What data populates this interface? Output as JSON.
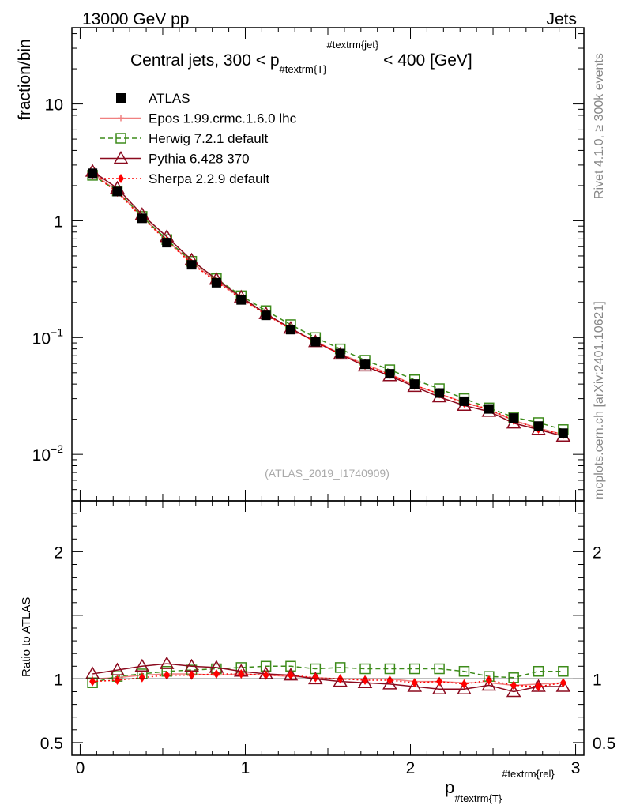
{
  "header": {
    "left": "13000 GeV pp",
    "right": "Jets"
  },
  "side_labels": {
    "upper": "Rivet 4.1.0, ≥ 300k events",
    "lower": "mcplots.cern.ch [arXiv:2401.10621]"
  },
  "chart_data": {
    "type": "line",
    "title": "Central jets, 300 < p",
    "title_sub": "#textrm{T}",
    "title_sup": "#textrm{jet}",
    "title_rest": " < 400 [GeV]",
    "watermark": "(ATLAS_2019_I1740909)",
    "ylabel": "fraction/bin",
    "ratio_ylabel": "Ratio to ATLAS",
    "xlabel": "p",
    "xlabel_sub": "#textrm{T}",
    "xlabel_sup": "#textrm{rel}",
    "x_ticks": [
      "0",
      "1",
      "2",
      "3"
    ],
    "y_ticks_main": [
      {
        "base": "10",
        "exp": "−2"
      },
      {
        "base": "10",
        "exp": "−1"
      },
      {
        "base": "1",
        "exp": ""
      },
      {
        "base": "10",
        "exp": ""
      }
    ],
    "y_ticks_ratio": [
      "0.5",
      "1",
      "2"
    ],
    "xlim": [
      -0.05,
      3.05
    ],
    "ylim_main": [
      0.004,
      45
    ],
    "ylim_ratio": [
      0.4,
      2.4
    ],
    "x": [
      0.075,
      0.225,
      0.375,
      0.525,
      0.675,
      0.825,
      0.975,
      1.125,
      1.275,
      1.425,
      1.575,
      1.725,
      1.875,
      2.025,
      2.175,
      2.325,
      2.475,
      2.625,
      2.775,
      2.925
    ],
    "series": [
      {
        "name": "ATLAS",
        "color": "#000000",
        "marker": "square-filled",
        "line": "none",
        "values": [
          2.55,
          1.78,
          1.05,
          0.65,
          0.42,
          0.295,
          0.21,
          0.155,
          0.117,
          0.092,
          0.073,
          0.059,
          0.049,
          0.04,
          0.0335,
          0.0285,
          0.0245,
          0.0205,
          0.0175,
          0.0152
        ]
      },
      {
        "name": "Epos 1.99.crmc.1.6.0 lhc",
        "color": "#f08080",
        "marker": "cross",
        "line": "solid",
        "values": [
          2.55,
          1.8,
          1.08,
          0.68,
          0.44,
          0.305,
          0.218,
          0.159,
          0.119,
          0.093,
          0.073,
          0.059,
          0.049,
          0.039,
          0.033,
          0.028,
          0.024,
          0.0195,
          0.0168,
          0.0148
        ]
      },
      {
        "name": "Herwig 7.2.1 default",
        "color": "#3d8b1a",
        "marker": "square-open",
        "line": "dashed",
        "values": [
          2.45,
          1.8,
          1.09,
          0.69,
          0.45,
          0.32,
          0.228,
          0.17,
          0.129,
          0.1,
          0.08,
          0.064,
          0.053,
          0.0435,
          0.0365,
          0.03,
          0.025,
          0.0208,
          0.0187,
          0.0163
        ]
      },
      {
        "name": "Pythia 6.428 370",
        "color": "#8b0a1e",
        "marker": "triangle-open",
        "line": "solid",
        "values": [
          2.65,
          1.9,
          1.13,
          0.73,
          0.46,
          0.315,
          0.222,
          0.16,
          0.12,
          0.092,
          0.072,
          0.057,
          0.047,
          0.038,
          0.031,
          0.0262,
          0.0233,
          0.0185,
          0.0163,
          0.0143
        ]
      },
      {
        "name": "Sherpa 2.2.9 default",
        "color": "#ff0000",
        "marker": "diamond-filled",
        "line": "dotted",
        "values": [
          2.5,
          1.76,
          1.06,
          0.67,
          0.43,
          0.3,
          0.215,
          0.157,
          0.118,
          0.092,
          0.072,
          0.058,
          0.048,
          0.039,
          0.033,
          0.0276,
          0.0245,
          0.0196,
          0.0165,
          0.0148
        ]
      }
    ],
    "ratio_series": [
      {
        "name": "Epos 1.99.crmc.1.6.0 lhc",
        "values": [
          1.0,
          1.01,
          1.03,
          1.04,
          1.04,
          1.03,
          1.04,
          1.03,
          1.02,
          1.01,
          1.0,
          1.0,
          1.0,
          0.98,
          0.98,
          0.97,
          0.97,
          0.95,
          0.96,
          0.97
        ]
      },
      {
        "name": "Herwig 7.2.1 default",
        "values": [
          0.97,
          1.02,
          1.04,
          1.06,
          1.07,
          1.08,
          1.09,
          1.1,
          1.1,
          1.08,
          1.09,
          1.08,
          1.08,
          1.08,
          1.08,
          1.06,
          1.02,
          1.01,
          1.06,
          1.06
        ]
      },
      {
        "name": "Pythia 6.428 370",
        "values": [
          1.04,
          1.07,
          1.1,
          1.12,
          1.1,
          1.09,
          1.06,
          1.04,
          1.03,
          1.0,
          0.98,
          0.97,
          0.96,
          0.94,
          0.92,
          0.92,
          0.95,
          0.9,
          0.94,
          0.94
        ]
      },
      {
        "name": "Sherpa 2.2.9 default",
        "values": [
          0.98,
          0.99,
          1.01,
          1.03,
          1.03,
          1.04,
          1.04,
          1.03,
          1.03,
          1.01,
          1.0,
          0.99,
          0.99,
          0.97,
          0.98,
          0.96,
          0.99,
          0.95,
          0.94,
          0.97
        ]
      }
    ]
  }
}
